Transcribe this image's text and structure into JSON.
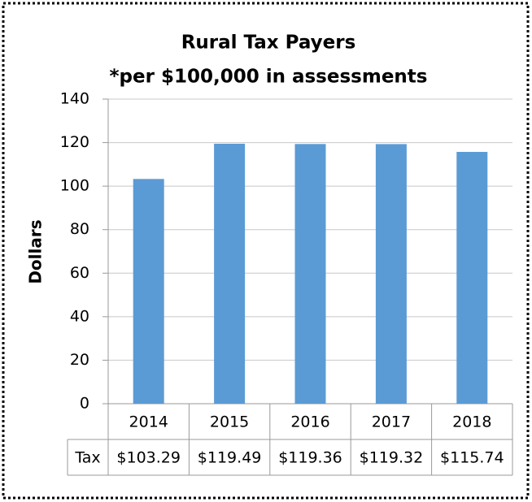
{
  "chart_data": {
    "type": "bar",
    "title": "Rural Tax Payers",
    "subtitle": "*per $100,000 in assessments",
    "y_label": "Dollars",
    "categories": [
      "2014",
      "2015",
      "2016",
      "2017",
      "2018"
    ],
    "series": [
      {
        "name": "Tax",
        "color": "#5b9bd5",
        "values": [
          103.29,
          119.49,
          119.36,
          119.32,
          115.74
        ],
        "value_labels": [
          "$103.29",
          "$119.49",
          "$119.36",
          "$119.32",
          "$115.74"
        ]
      }
    ],
    "ylim": [
      0,
      140
    ],
    "yticks": [
      0,
      20,
      40,
      60,
      80,
      100,
      120,
      140
    ],
    "grid": true
  }
}
